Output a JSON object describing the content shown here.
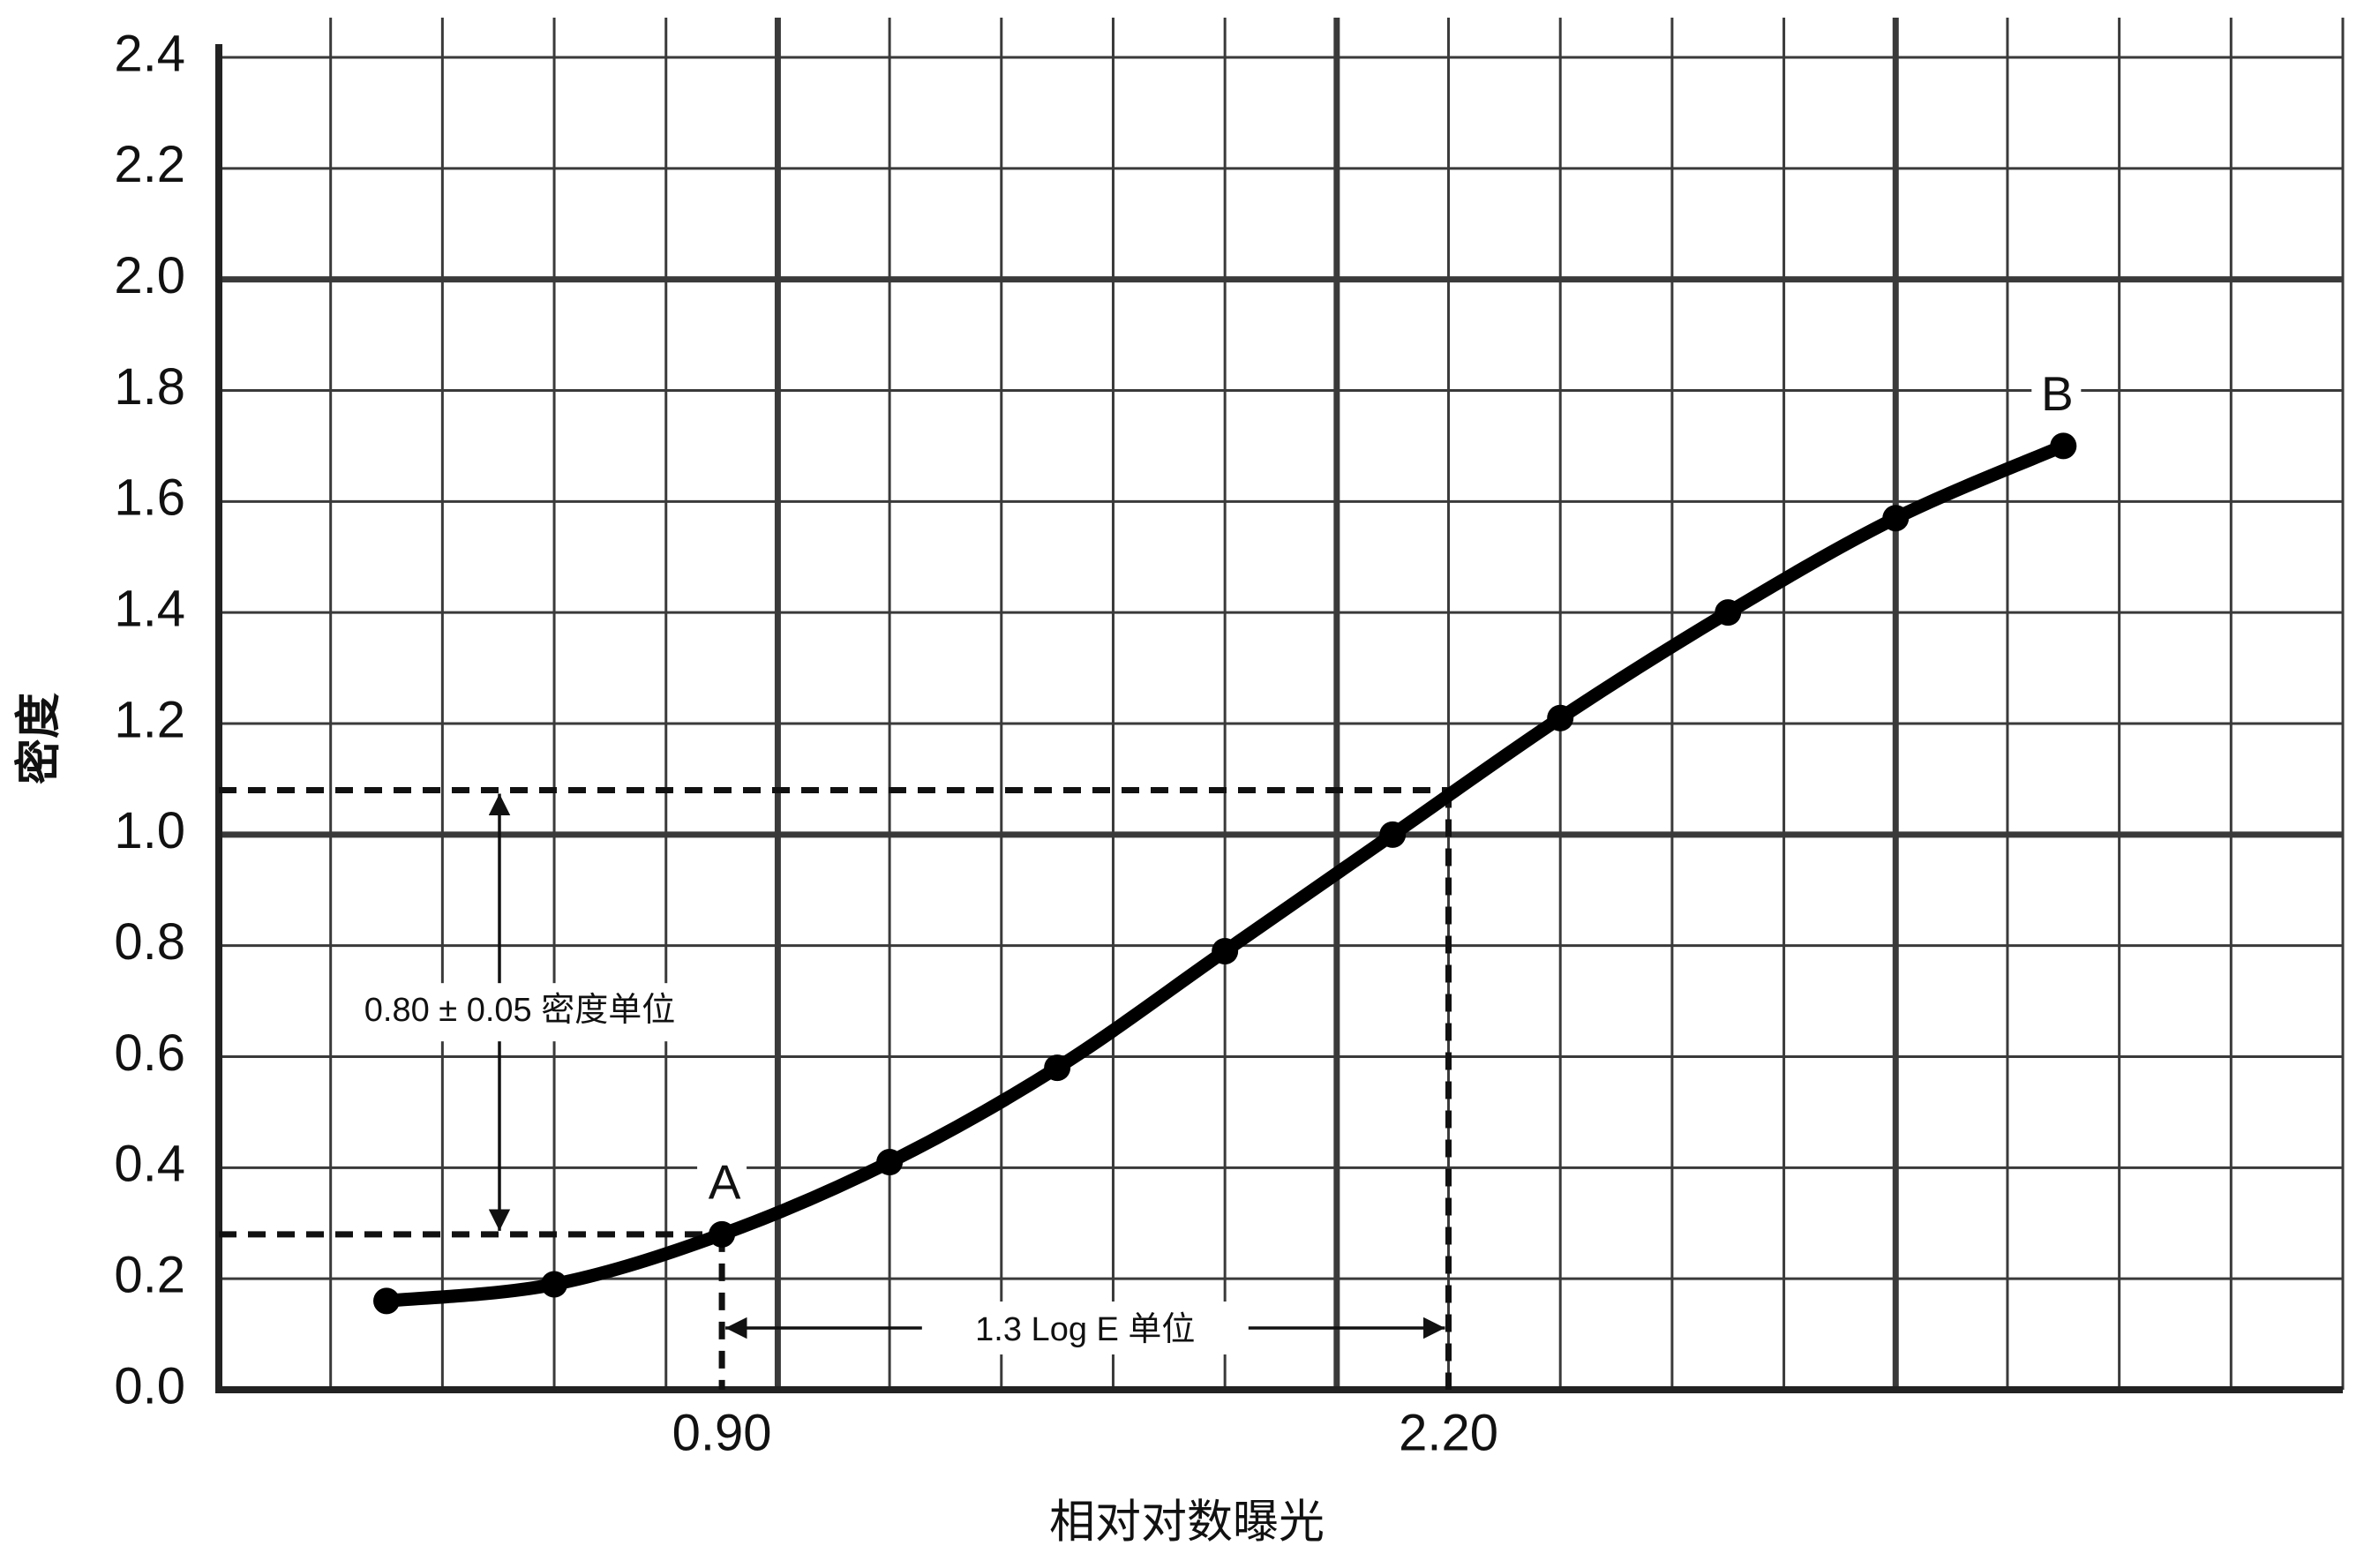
{
  "chart_data": {
    "type": "line",
    "x_label": "相对对数曝光",
    "y_label": "密度",
    "x": [
      0.3,
      0.6,
      0.9,
      1.2,
      1.5,
      1.8,
      2.1,
      2.4,
      2.7,
      3.0,
      3.3
    ],
    "values": [
      0.16,
      0.19,
      0.28,
      0.41,
      0.58,
      0.79,
      1.0,
      1.21,
      1.4,
      1.57,
      1.7
    ],
    "color": "#000000",
    "xlim": [
      0,
      3.8
    ],
    "ylim": [
      0,
      2.4
    ],
    "xticks": [
      {
        "value": 0.9,
        "label": "0.90"
      },
      {
        "value": 2.2,
        "label": "2.20"
      }
    ],
    "yticks": [
      {
        "value": 0,
        "label": "0.0"
      },
      0.2,
      0.4,
      0.6,
      0.8,
      {
        "value": 1,
        "label": "1.0"
      },
      1.2,
      1.4,
      1.6,
      1.8,
      {
        "value": 2,
        "label": "2.0"
      },
      2.2,
      2.4
    ],
    "grid": {
      "minor": 0.2,
      "major": 1
    },
    "reference_lines": [
      0.28,
      1.08
    ],
    "annotations": {
      "point_a": "A",
      "point_b": "B",
      "density_range": "0.80 ± 0.05 密度单位",
      "exposure_range": "1.3 Log E 单位"
    }
  }
}
